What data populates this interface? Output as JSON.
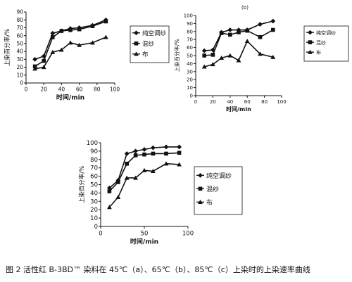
{
  "caption": "图 2 活性红 B-3BD™ 染料在 45℃（a）、65℃（b）、85℃（c）上染时的上染速率曲线",
  "chart_data": [
    {
      "type": "line",
      "panel": "a",
      "xlabel": "时间/min",
      "ylabel": "上染百分率/%",
      "xlim": [
        0,
        100
      ],
      "ylim": [
        0,
        90
      ],
      "xticks": [
        0,
        20,
        40,
        60,
        80,
        100
      ],
      "yticks": [
        0,
        10,
        20,
        30,
        40,
        50,
        60,
        70,
        80,
        90
      ],
      "legend_position": "right",
      "series": [
        {
          "name": "纯空调纱",
          "marker": "diamond",
          "x": [
            10,
            20,
            30,
            40,
            50,
            60,
            75,
            90
          ],
          "y": [
            30,
            34,
            63,
            66,
            69,
            70,
            73,
            80
          ]
        },
        {
          "name": "混纱",
          "marker": "square",
          "x": [
            10,
            20,
            30,
            40,
            50,
            60,
            75,
            90
          ],
          "y": [
            21,
            28,
            58,
            66,
            67,
            68,
            72,
            78
          ]
        },
        {
          "name": "布",
          "marker": "triangle",
          "x": [
            10,
            20,
            30,
            40,
            50,
            60,
            75,
            90
          ],
          "y": [
            18,
            20,
            39,
            42,
            51,
            48,
            51,
            58
          ]
        }
      ]
    },
    {
      "type": "line",
      "panel": "b",
      "xlabel": "时间/min",
      "ylabel": "上染百分率/%",
      "xlim": [
        0,
        100
      ],
      "ylim": [
        0,
        100
      ],
      "xticks": [
        0,
        20,
        40,
        60,
        80,
        100
      ],
      "yticks": [
        0,
        10,
        20,
        30,
        40,
        50,
        60,
        70,
        80,
        90,
        100
      ],
      "top_label": "(b)",
      "legend_position": "right",
      "series": [
        {
          "name": "纯空调纱",
          "marker": "diamond",
          "x": [
            10,
            20,
            30,
            40,
            50,
            60,
            75,
            90
          ],
          "y": [
            56,
            57,
            79,
            82,
            82,
            82,
            89,
            93
          ]
        },
        {
          "name": "混纱",
          "marker": "square",
          "x": [
            10,
            20,
            30,
            40,
            50,
            60,
            75,
            90
          ],
          "y": [
            50,
            51,
            78,
            76,
            79,
            81,
            73,
            82
          ]
        },
        {
          "name": "布",
          "marker": "triangle",
          "x": [
            10,
            20,
            30,
            40,
            50,
            60,
            75,
            90
          ],
          "y": [
            36,
            39,
            47,
            50,
            44,
            68,
            52,
            48
          ]
        }
      ]
    },
    {
      "type": "line",
      "panel": "c",
      "xlabel": "时间/min",
      "ylabel": "上染百分率/%",
      "xlim": [
        0,
        100
      ],
      "ylim": [
        0,
        100
      ],
      "xticks": [
        0,
        50,
        100
      ],
      "yticks": [
        0,
        10,
        20,
        30,
        40,
        50,
        60,
        70,
        80,
        90,
        100
      ],
      "legend_position": "right",
      "series": [
        {
          "name": "纯空调纱",
          "marker": "diamond",
          "x": [
            10,
            20,
            30,
            40,
            50,
            60,
            75,
            90
          ],
          "y": [
            46,
            55,
            87,
            90,
            92,
            94,
            95,
            95
          ]
        },
        {
          "name": "混纱",
          "marker": "square",
          "x": [
            10,
            20,
            30,
            40,
            50,
            60,
            75,
            90
          ],
          "y": [
            42,
            53,
            75,
            85,
            86,
            87,
            87,
            88
          ]
        },
        {
          "name": "布",
          "marker": "triangle",
          "x": [
            10,
            20,
            30,
            40,
            50,
            60,
            75,
            90
          ],
          "y": [
            23,
            35,
            58,
            58,
            67,
            66,
            75,
            74
          ]
        }
      ]
    }
  ]
}
